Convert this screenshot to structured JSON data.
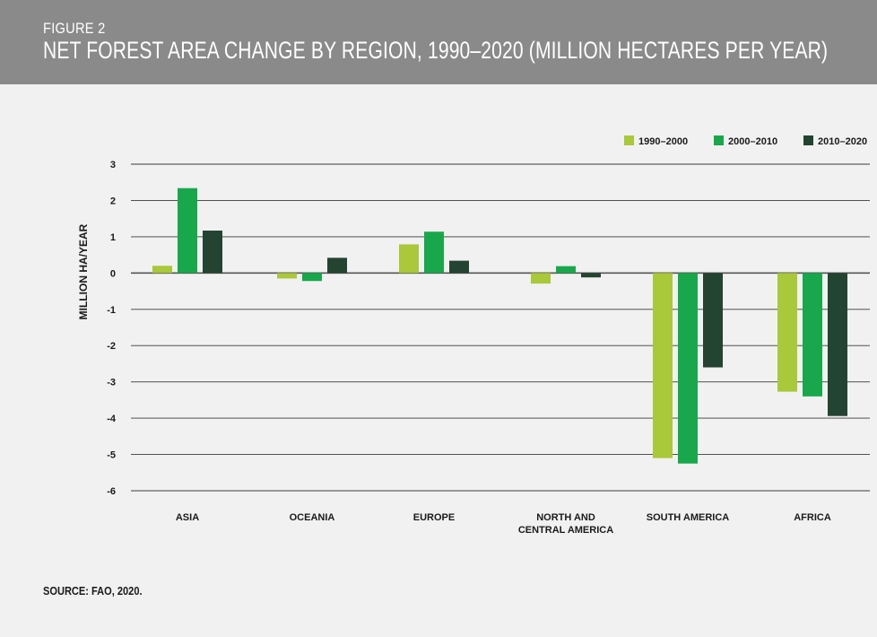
{
  "figure": {
    "label": "FIGURE 2",
    "title": "NET FOREST AREA CHANGE BY REGION, 1990–2020 (MILLION HECTARES PER YEAR)",
    "source": "SOURCE: FAO, 2020."
  },
  "chart_data": {
    "type": "bar",
    "ylabel": "MILLION HA/YEAR",
    "xlabel": "",
    "ylim": [
      -6,
      3
    ],
    "yticks": [
      3,
      2,
      1,
      0,
      -1,
      -2,
      -3,
      -4,
      -5,
      -6
    ],
    "grid": true,
    "legend_position": "top-right",
    "categories": [
      [
        "ASIA"
      ],
      [
        "OCEANIA"
      ],
      [
        "EUROPE"
      ],
      [
        "NORTH AND",
        "CENTRAL AMERICA"
      ],
      [
        "SOUTH AMERICA"
      ],
      [
        "AFRICA"
      ]
    ],
    "series": [
      {
        "name": "1990–2000",
        "color": "#a9c83a",
        "values": [
          0.2,
          -0.15,
          0.79,
          -0.29,
          -5.1,
          -3.27
        ]
      },
      {
        "name": "2000–2010",
        "color": "#18a84b",
        "values": [
          2.34,
          -0.22,
          1.14,
          0.19,
          -5.25,
          -3.4
        ]
      },
      {
        "name": "2010–2020",
        "color": "#234430",
        "values": [
          1.17,
          0.42,
          0.34,
          -0.12,
          -2.6,
          -3.94
        ]
      }
    ]
  }
}
